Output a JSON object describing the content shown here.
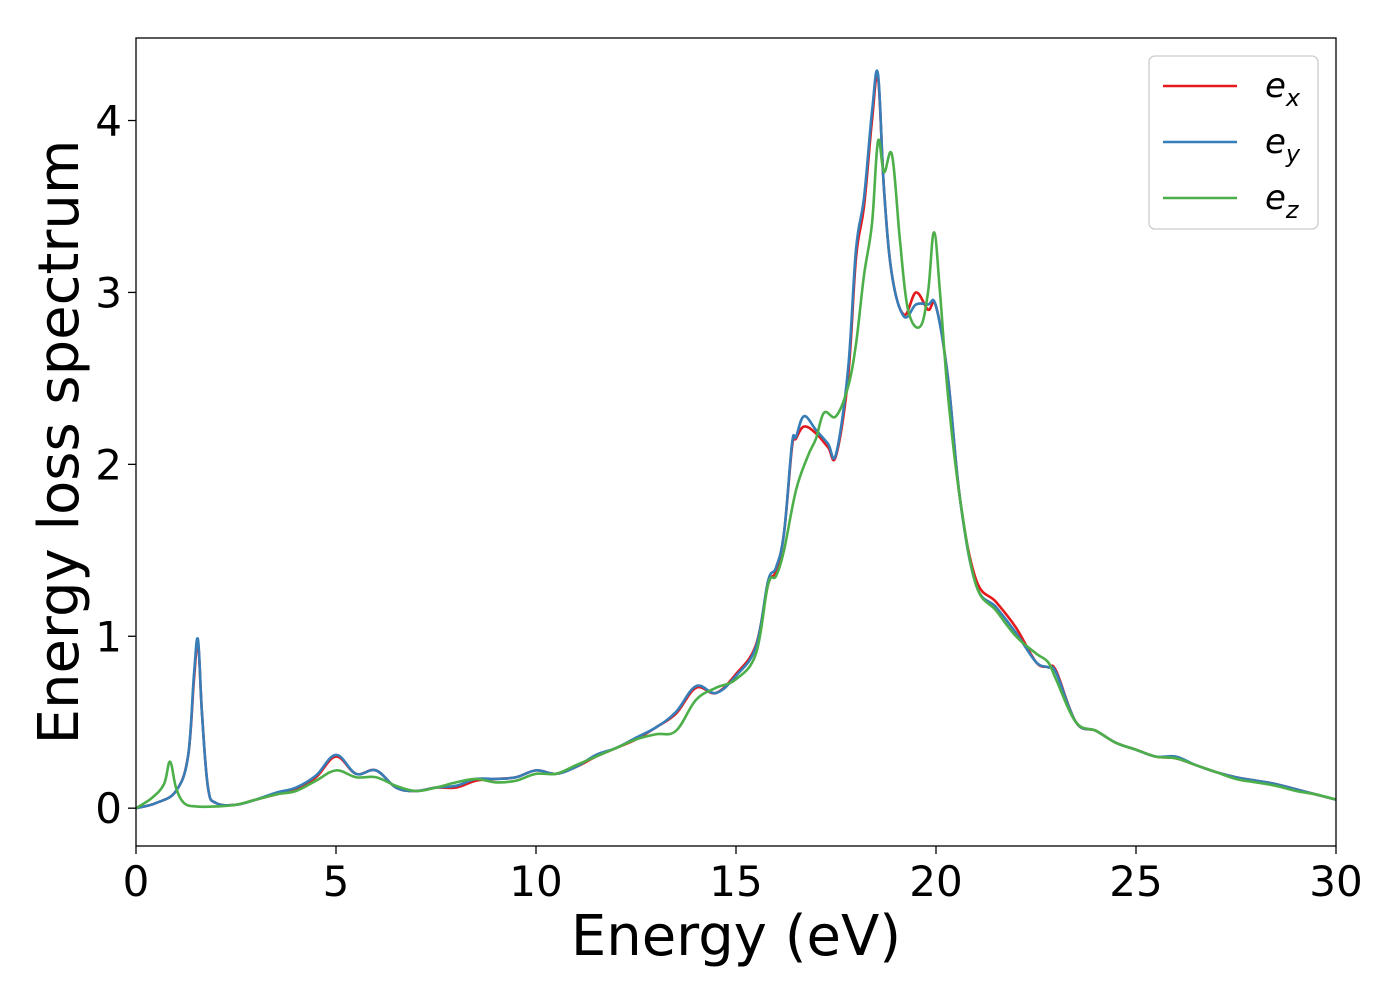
{
  "chart_data": {
    "type": "line",
    "title": "",
    "xlabel": "Energy (eV)",
    "ylabel": "Energy loss spectrum",
    "xlim": [
      0,
      30
    ],
    "ylim": [
      -0.22,
      4.48
    ],
    "xticks": [
      0,
      5,
      10,
      15,
      20,
      25,
      30
    ],
    "yticks": [
      0,
      1,
      2,
      3,
      4
    ],
    "xtick_labels": [
      "0",
      "5",
      "10",
      "15",
      "20",
      "25",
      "30"
    ],
    "ytick_labels": [
      "0",
      "1",
      "2",
      "3",
      "4"
    ],
    "grid": false,
    "legend_position": "top-right",
    "series": [
      {
        "name": "e_x",
        "label_base": "e",
        "label_sub": "x",
        "color": "#e41a1c",
        "x": [
          0,
          0.5,
          1.0,
          1.3,
          1.45,
          1.55,
          1.65,
          1.8,
          2.0,
          2.5,
          3.0,
          3.5,
          4.0,
          4.5,
          5.0,
          5.5,
          6.0,
          6.5,
          7.0,
          7.5,
          8.0,
          8.5,
          9.0,
          9.5,
          10.0,
          10.5,
          11.0,
          11.5,
          12.0,
          12.5,
          13.0,
          13.5,
          14.0,
          14.5,
          15.0,
          15.5,
          15.8,
          16.0,
          16.2,
          16.4,
          16.5,
          16.7,
          17.0,
          17.3,
          17.5,
          17.8,
          18.0,
          18.2,
          18.4,
          18.55,
          18.7,
          18.9,
          19.2,
          19.5,
          19.8,
          20.0,
          20.3,
          20.6,
          21.0,
          21.5,
          22.0,
          22.5,
          22.8,
          23.0,
          23.5,
          24.0,
          24.5,
          25.0,
          25.5,
          26.0,
          26.5,
          27.0,
          27.5,
          28.0,
          28.5,
          29.0,
          29.5,
          30.0
        ],
        "y": [
          0.0,
          0.03,
          0.1,
          0.3,
          0.75,
          0.96,
          0.55,
          0.12,
          0.03,
          0.02,
          0.05,
          0.08,
          0.11,
          0.18,
          0.3,
          0.2,
          0.22,
          0.12,
          0.1,
          0.12,
          0.12,
          0.16,
          0.17,
          0.18,
          0.22,
          0.2,
          0.24,
          0.3,
          0.35,
          0.4,
          0.47,
          0.55,
          0.7,
          0.67,
          0.78,
          0.95,
          1.3,
          1.38,
          1.6,
          2.1,
          2.15,
          2.22,
          2.18,
          2.1,
          2.05,
          2.5,
          3.2,
          3.5,
          4.0,
          4.25,
          3.6,
          3.1,
          2.87,
          3.0,
          2.9,
          2.92,
          2.5,
          1.8,
          1.33,
          1.2,
          1.05,
          0.85,
          0.82,
          0.8,
          0.5,
          0.45,
          0.38,
          0.34,
          0.3,
          0.29,
          0.25,
          0.21,
          0.18,
          0.16,
          0.14,
          0.11,
          0.08,
          0.05
        ]
      },
      {
        "name": "e_y",
        "label_base": "e",
        "label_sub": "y",
        "color": "#377eb8",
        "x": [
          0,
          0.5,
          1.0,
          1.3,
          1.45,
          1.55,
          1.65,
          1.8,
          2.0,
          2.5,
          3.0,
          3.5,
          4.0,
          4.5,
          5.0,
          5.5,
          6.0,
          6.5,
          7.0,
          7.5,
          8.0,
          8.5,
          9.0,
          9.5,
          10.0,
          10.5,
          11.0,
          11.5,
          12.0,
          12.5,
          13.0,
          13.5,
          14.0,
          14.5,
          15.0,
          15.5,
          15.8,
          16.0,
          16.2,
          16.4,
          16.5,
          16.7,
          17.0,
          17.3,
          17.5,
          17.8,
          18.0,
          18.2,
          18.4,
          18.55,
          18.7,
          18.9,
          19.2,
          19.5,
          19.8,
          20.0,
          20.3,
          20.6,
          21.0,
          21.5,
          22.0,
          22.5,
          22.8,
          23.0,
          23.5,
          24.0,
          24.5,
          25.0,
          25.5,
          26.0,
          26.5,
          27.0,
          27.5,
          28.0,
          28.5,
          29.0,
          29.5,
          30.0
        ],
        "y": [
          0.0,
          0.03,
          0.1,
          0.3,
          0.78,
          0.98,
          0.55,
          0.12,
          0.03,
          0.02,
          0.05,
          0.09,
          0.12,
          0.19,
          0.31,
          0.2,
          0.22,
          0.12,
          0.1,
          0.12,
          0.13,
          0.17,
          0.17,
          0.18,
          0.22,
          0.2,
          0.24,
          0.31,
          0.35,
          0.41,
          0.47,
          0.56,
          0.71,
          0.67,
          0.77,
          0.94,
          1.32,
          1.4,
          1.6,
          2.12,
          2.16,
          2.28,
          2.2,
          2.12,
          2.06,
          2.55,
          3.25,
          3.55,
          4.05,
          4.27,
          3.6,
          3.1,
          2.86,
          2.93,
          2.93,
          2.92,
          2.5,
          1.8,
          1.3,
          1.17,
          1.02,
          0.85,
          0.82,
          0.79,
          0.5,
          0.45,
          0.38,
          0.34,
          0.3,
          0.3,
          0.25,
          0.21,
          0.18,
          0.16,
          0.14,
          0.11,
          0.08,
          0.05
        ]
      },
      {
        "name": "e_z",
        "label_base": "e",
        "label_sub": "z",
        "color": "#4daf4a",
        "x": [
          0,
          0.4,
          0.7,
          0.85,
          1.0,
          1.2,
          1.5,
          2.0,
          2.5,
          3.0,
          3.5,
          4.0,
          4.5,
          5.0,
          5.5,
          6.0,
          6.5,
          7.0,
          7.5,
          8.0,
          8.5,
          9.0,
          9.5,
          10.0,
          10.5,
          11.0,
          11.5,
          12.0,
          12.5,
          13.0,
          13.5,
          14.0,
          14.5,
          15.0,
          15.5,
          15.8,
          16.0,
          16.2,
          16.5,
          16.8,
          17.0,
          17.2,
          17.5,
          17.8,
          18.0,
          18.2,
          18.4,
          18.55,
          18.7,
          18.9,
          19.1,
          19.3,
          19.6,
          19.8,
          19.95,
          20.1,
          20.3,
          20.6,
          21.0,
          21.5,
          22.0,
          22.5,
          22.8,
          23.0,
          23.5,
          24.0,
          24.5,
          25.0,
          25.5,
          26.0,
          26.5,
          27.0,
          27.5,
          28.0,
          28.5,
          29.0,
          29.5,
          30.0
        ],
        "y": [
          0.0,
          0.06,
          0.14,
          0.27,
          0.12,
          0.03,
          0.01,
          0.01,
          0.02,
          0.05,
          0.08,
          0.1,
          0.16,
          0.22,
          0.18,
          0.18,
          0.13,
          0.1,
          0.12,
          0.15,
          0.17,
          0.15,
          0.16,
          0.2,
          0.2,
          0.25,
          0.3,
          0.35,
          0.4,
          0.43,
          0.45,
          0.63,
          0.7,
          0.75,
          0.9,
          1.3,
          1.35,
          1.5,
          1.85,
          2.05,
          2.15,
          2.3,
          2.28,
          2.45,
          2.7,
          3.1,
          3.4,
          3.88,
          3.7,
          3.8,
          3.3,
          2.9,
          2.8,
          3.0,
          3.35,
          3.0,
          2.4,
          1.8,
          1.3,
          1.15,
          1.0,
          0.9,
          0.85,
          0.75,
          0.5,
          0.45,
          0.38,
          0.34,
          0.3,
          0.29,
          0.25,
          0.21,
          0.17,
          0.15,
          0.13,
          0.1,
          0.08,
          0.05
        ]
      }
    ]
  }
}
